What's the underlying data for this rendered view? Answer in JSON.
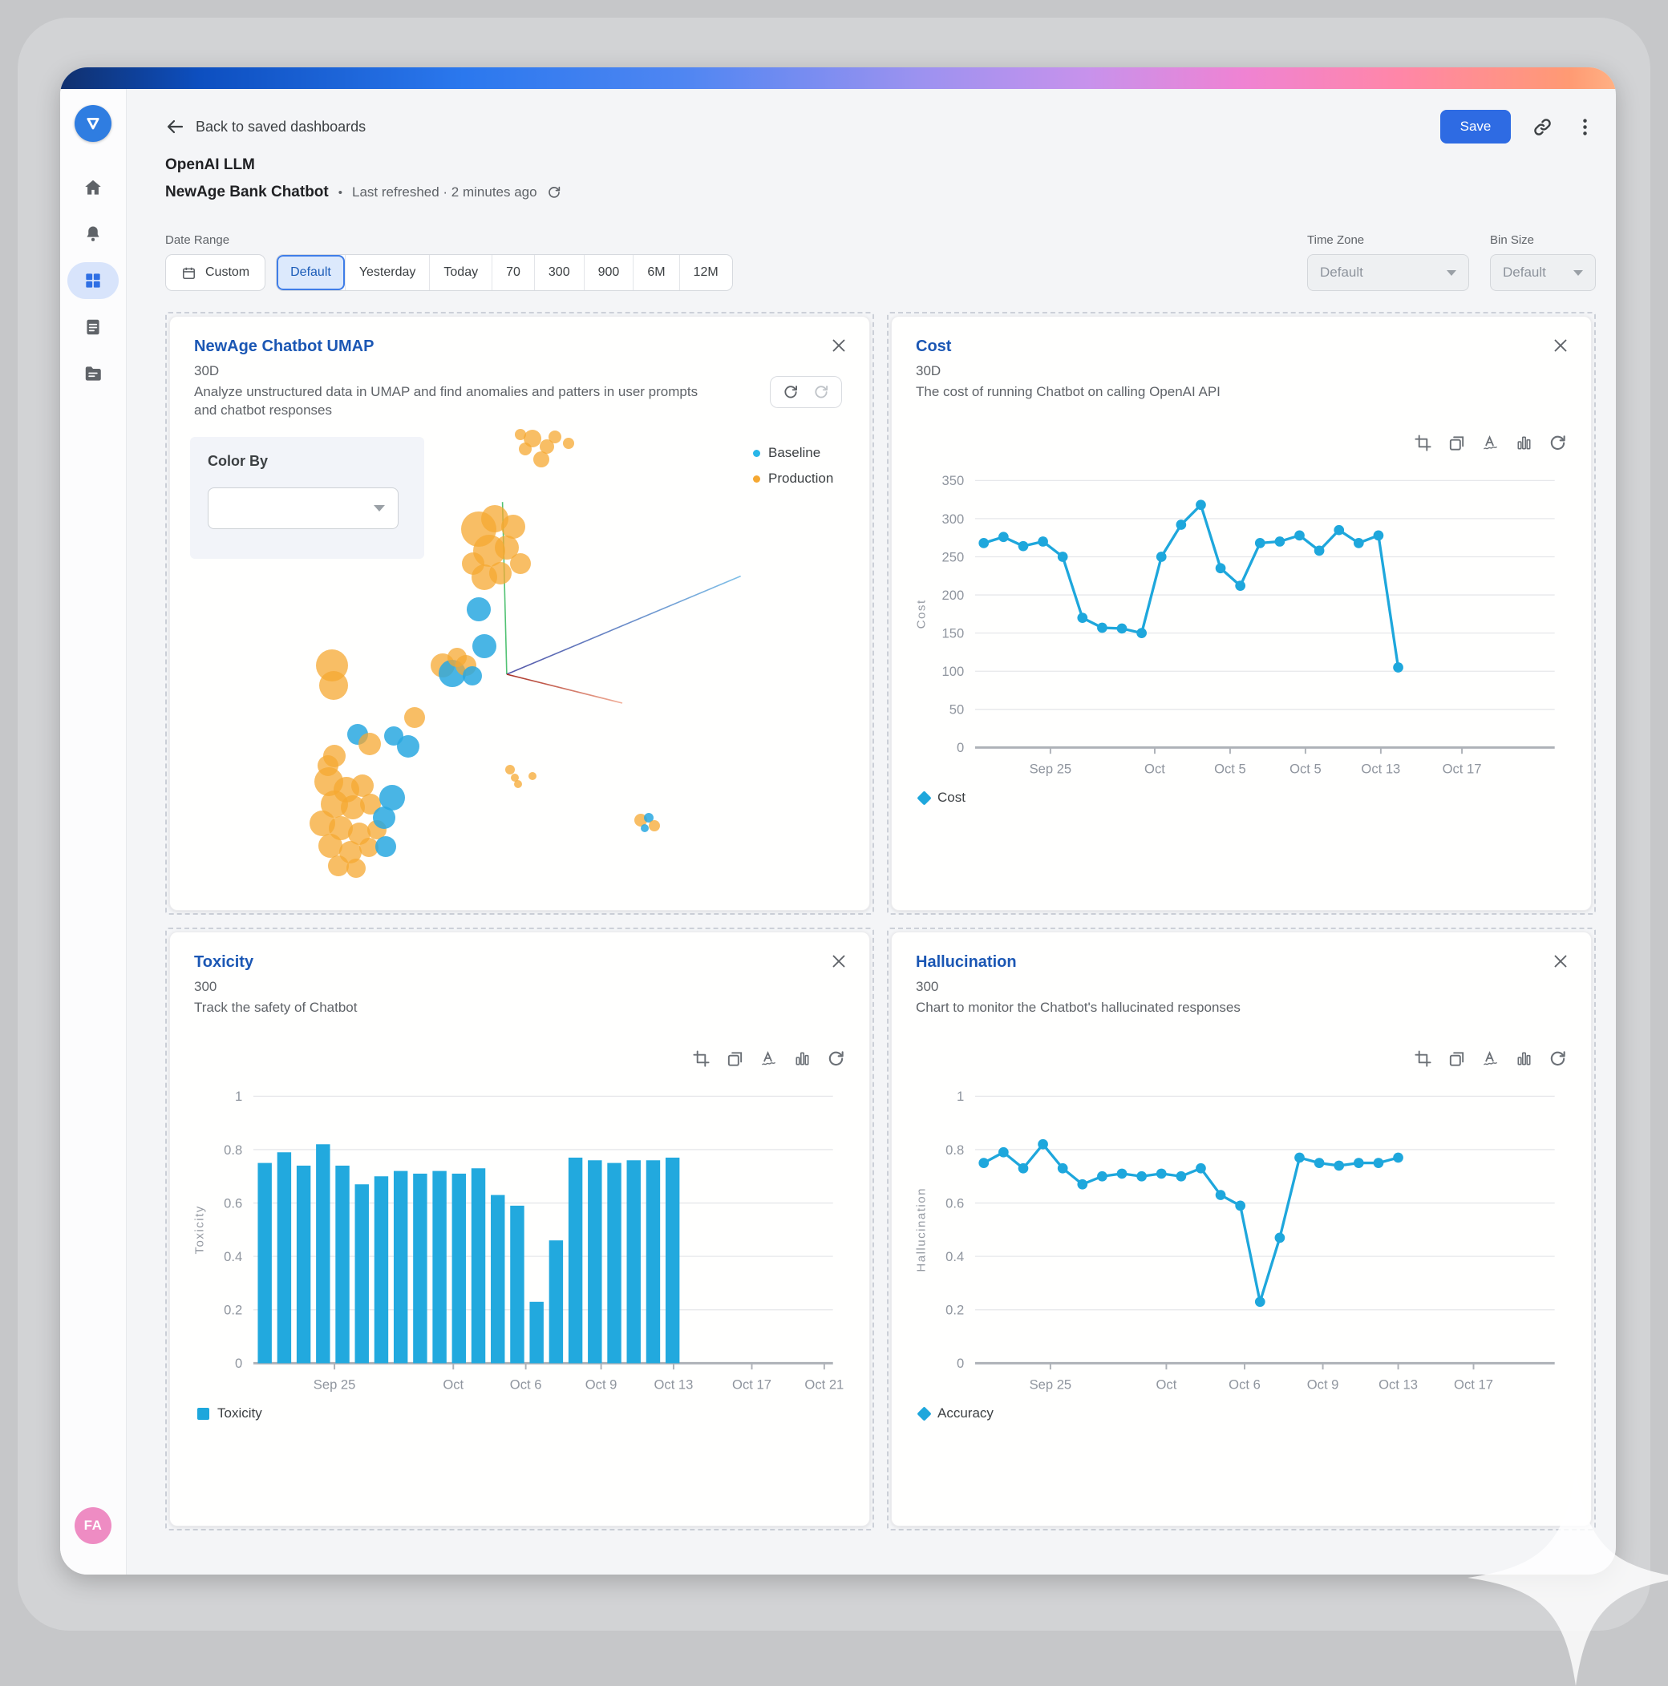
{
  "header": {
    "back_label": "Back to saved dashboards",
    "product": "OpenAI LLM",
    "dashboard_name": "NewAge Bank Chatbot",
    "dot": "•",
    "refreshed": "Last refreshed · 2 minutes ago",
    "save_label": "Save"
  },
  "sidebar": {
    "avatar": "FA"
  },
  "filters": {
    "date_range_label": "Date Range",
    "custom_label": "Custom",
    "ranges": [
      "Default",
      "Yesterday",
      "Today",
      "70",
      "300",
      "900",
      "6M",
      "12M"
    ],
    "selected_range": "Default",
    "time_zone_label": "Time Zone",
    "time_zone_value": "Default",
    "bin_size_label": "Bin Size",
    "bin_size_value": "Default"
  },
  "cards": {
    "umap": {
      "title": "NewAge Chatbot UMAP",
      "sub": "30D",
      "desc": "Analyze unstructured data in UMAP and find anomalies and patters in user prompts and chatbot responses",
      "color_by_label": "Color By",
      "legend": [
        {
          "label": "Baseline",
          "color": "#29b6e8"
        },
        {
          "label": "Production",
          "color": "#f5a832"
        }
      ]
    },
    "cost": {
      "title": "Cost",
      "sub": "30D",
      "desc": "The cost of running Chatbot on calling OpenAI API",
      "legend_label": "Cost"
    },
    "toxicity": {
      "title": "Toxicity",
      "sub": "300",
      "desc": "Track the safety of Chatbot",
      "legend_label": "Toxicity"
    },
    "hallucination": {
      "title": "Hallucination",
      "sub": "300",
      "desc": "Chart to monitor the Chatbot's hallucinated responses",
      "legend_label": "Accuracy"
    }
  },
  "colors": {
    "accent": "#2e6be3",
    "chart_blue": "#1ea7dc",
    "baseline_blue": "#29a8e0",
    "production_orange": "#f5a832"
  },
  "chart_data": [
    {
      "id": "umap",
      "type": "scatter",
      "title": "NewAge Chatbot UMAP",
      "series": [
        {
          "name": "Baseline",
          "color": "#29a8e0"
        },
        {
          "name": "Production",
          "color": "#f5a832"
        }
      ],
      "axes_3d": [
        {
          "x1": 46.9,
          "y1": 15.2,
          "x2": 47.5,
          "y2": 51.0,
          "c1": "#52c273",
          "c2": "#52c273"
        },
        {
          "x1": 80.5,
          "y1": 30.6,
          "x2": 47.5,
          "y2": 51.0,
          "c1": "#7fc0e8",
          "c2": "#5456a8"
        },
        {
          "x1": 47.5,
          "y1": 51.0,
          "x2": 63.8,
          "y2": 57.0,
          "c1": "#a93226",
          "c2": "#f2b09a"
        }
      ],
      "points": [
        [
          51.1,
          2.0,
          11,
          1
        ],
        [
          53.2,
          3.7,
          9,
          1
        ],
        [
          50.1,
          4.2,
          8,
          1
        ],
        [
          52.4,
          6.3,
          10,
          1
        ],
        [
          54.3,
          1.6,
          8,
          1
        ],
        [
          49.4,
          1.2,
          7,
          1
        ],
        [
          56.2,
          3.0,
          7,
          1
        ],
        [
          43.6,
          20.8,
          22,
          1
        ],
        [
          45.8,
          18.7,
          17,
          1
        ],
        [
          48.4,
          20.3,
          15,
          1
        ],
        [
          45.0,
          25.3,
          20,
          1
        ],
        [
          42.8,
          28.0,
          14,
          1
        ],
        [
          47.5,
          24.7,
          15,
          1
        ],
        [
          49.4,
          28.0,
          13,
          1
        ],
        [
          44.3,
          30.8,
          16,
          1
        ],
        [
          46.6,
          30.0,
          14,
          1
        ],
        [
          43.6,
          37.5,
          15,
          0
        ],
        [
          44.3,
          45.2,
          15,
          0
        ],
        [
          38.5,
          49.2,
          15,
          1
        ],
        [
          39.8,
          50.8,
          17,
          0
        ],
        [
          41.7,
          49.2,
          13,
          1
        ],
        [
          42.6,
          51.3,
          12,
          0
        ],
        [
          40.5,
          47.5,
          12,
          1
        ],
        [
          22.9,
          49.2,
          20,
          1
        ],
        [
          23.1,
          53.3,
          18,
          1
        ],
        [
          34.5,
          60.0,
          13,
          1
        ],
        [
          26.5,
          63.5,
          13,
          0
        ],
        [
          28.2,
          65.5,
          14,
          1
        ],
        [
          31.6,
          63.8,
          12,
          0
        ],
        [
          33.6,
          66.0,
          14,
          0
        ],
        [
          23.2,
          68.0,
          14,
          1
        ],
        [
          22.3,
          70.0,
          13,
          1
        ],
        [
          22.4,
          73.3,
          18,
          1
        ],
        [
          24.9,
          75.0,
          16,
          1
        ],
        [
          27.1,
          74.2,
          14,
          1
        ],
        [
          23.2,
          78.0,
          17,
          1
        ],
        [
          25.8,
          78.7,
          15,
          1
        ],
        [
          28.3,
          78.0,
          13,
          1
        ],
        [
          21.5,
          82.0,
          16,
          1
        ],
        [
          24.1,
          83.0,
          15,
          1
        ],
        [
          26.7,
          84.2,
          14,
          1
        ],
        [
          29.2,
          83.3,
          12,
          1
        ],
        [
          22.6,
          86.7,
          15,
          1
        ],
        [
          25.5,
          88.0,
          14,
          1
        ],
        [
          28.1,
          87.0,
          12,
          1
        ],
        [
          23.8,
          90.8,
          13,
          1
        ],
        [
          26.2,
          91.3,
          12,
          1
        ],
        [
          31.3,
          76.7,
          16,
          0
        ],
        [
          30.2,
          80.8,
          14,
          0
        ],
        [
          30.4,
          86.8,
          13,
          0
        ],
        [
          48.0,
          70.8,
          6,
          1
        ],
        [
          48.6,
          72.5,
          5,
          1
        ],
        [
          49.1,
          73.8,
          5,
          1
        ],
        [
          51.1,
          72.2,
          5,
          1
        ],
        [
          66.4,
          81.3,
          8,
          1
        ],
        [
          67.5,
          80.8,
          6,
          0
        ],
        [
          68.3,
          82.5,
          7,
          1
        ],
        [
          67.0,
          83.0,
          5,
          0
        ]
      ]
    },
    {
      "id": "cost",
      "type": "line",
      "title": "Cost",
      "ylabel": "Cost",
      "color": "#1ea7dc",
      "ymax": 350,
      "yticks": [
        [
          0,
          "0"
        ],
        [
          50,
          "50"
        ],
        [
          100,
          "100"
        ],
        [
          150,
          "150"
        ],
        [
          200,
          "200"
        ],
        [
          250,
          "250"
        ],
        [
          300,
          "300"
        ],
        [
          350,
          "350"
        ]
      ],
      "xticks": [
        [
          0.13,
          "Sep 25"
        ],
        [
          0.31,
          "Oct"
        ],
        [
          0.44,
          "Oct 5"
        ],
        [
          0.57,
          "Oct 5"
        ],
        [
          0.7,
          "Oct 13"
        ],
        [
          0.84,
          "Oct 17"
        ]
      ],
      "data_start": 0.015,
      "data_end": 0.73,
      "values": [
        268,
        276,
        264,
        270,
        250,
        170,
        157,
        156,
        150,
        250,
        292,
        318,
        235,
        212,
        268,
        270,
        278,
        258,
        285,
        268,
        278,
        105
      ],
      "legend": "Cost"
    },
    {
      "id": "toxicity",
      "type": "bar",
      "title": "Toxicity",
      "ylabel": "Toxicity",
      "color": "#22a9de",
      "ymax": 1,
      "yticks": [
        [
          0,
          "0"
        ],
        [
          0.2,
          "0.2"
        ],
        [
          0.4,
          "0.4"
        ],
        [
          0.6,
          "0.6"
        ],
        [
          0.8,
          "0.8"
        ],
        [
          1,
          "1"
        ]
      ],
      "xticks": [
        [
          0.14,
          "Sep 25"
        ],
        [
          0.345,
          "Oct"
        ],
        [
          0.47,
          "Oct 6"
        ],
        [
          0.6,
          "Oct 9"
        ],
        [
          0.725,
          "Oct 13"
        ],
        [
          0.86,
          "Oct 17"
        ],
        [
          0.985,
          "Oct 21"
        ]
      ],
      "data_start": 0.003,
      "data_end": 0.74,
      "values": [
        0.75,
        0.79,
        0.74,
        0.82,
        0.74,
        0.67,
        0.7,
        0.72,
        0.71,
        0.72,
        0.71,
        0.73,
        0.63,
        0.59,
        0.23,
        0.46,
        0.77,
        0.76,
        0.75,
        0.76,
        0.76,
        0.77
      ],
      "legend": "Toxicity"
    },
    {
      "id": "hallucination",
      "type": "line",
      "title": "Hallucination",
      "ylabel": "Hallucination",
      "color": "#1ea7dc",
      "ymax": 1,
      "yticks": [
        [
          0,
          "0"
        ],
        [
          0.2,
          "0.2"
        ],
        [
          0.4,
          "0.4"
        ],
        [
          0.6,
          "0.6"
        ],
        [
          0.8,
          "0.8"
        ],
        [
          1,
          "1"
        ]
      ],
      "xticks": [
        [
          0.13,
          "Sep 25"
        ],
        [
          0.33,
          "Oct"
        ],
        [
          0.465,
          "Oct 6"
        ],
        [
          0.6,
          "Oct 9"
        ],
        [
          0.73,
          "Oct 13"
        ],
        [
          0.86,
          "Oct 17"
        ]
      ],
      "data_start": 0.015,
      "data_end": 0.73,
      "values": [
        0.75,
        0.79,
        0.73,
        0.82,
        0.73,
        0.67,
        0.7,
        0.71,
        0.7,
        0.71,
        0.7,
        0.73,
        0.63,
        0.59,
        0.23,
        0.47,
        0.77,
        0.75,
        0.74,
        0.75,
        0.75,
        0.77
      ],
      "legend": "Accuracy"
    }
  ]
}
